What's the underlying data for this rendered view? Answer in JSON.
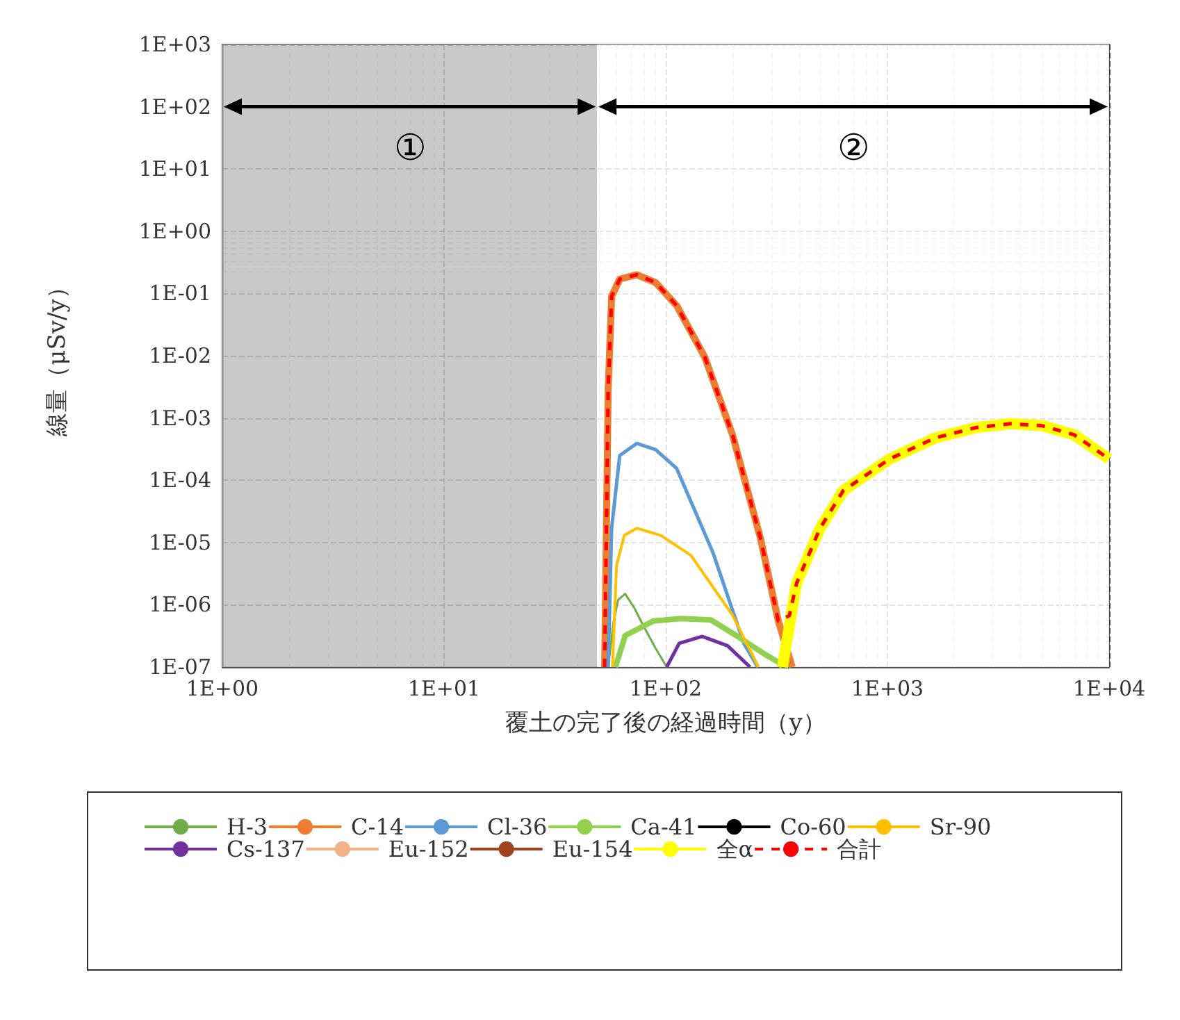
{
  "chart_data": {
    "type": "line",
    "xlabel": "覆土の完了後の経過時間（y）",
    "ylabel": "線量（μSv/y）",
    "log": "xy",
    "grid": true,
    "legend": "bottom",
    "marker": "none",
    "xlim": [
      1,
      10000
    ],
    "xticks": [
      {
        "value": 1,
        "label": "1E+00"
      },
      {
        "value": 10,
        "label": "1E+01"
      },
      {
        "value": 100,
        "label": "1E+02"
      },
      {
        "value": 1000,
        "label": "1E+03"
      },
      {
        "value": 10000,
        "label": "1E+04"
      }
    ],
    "ylim": [
      1e-07,
      1000
    ],
    "yticks": [
      {
        "value": 1e-07,
        "label": "1E-07"
      },
      {
        "value": 1e-06,
        "label": "1E-06"
      },
      {
        "value": 1e-05,
        "label": "1E-05"
      },
      {
        "value": 0.0001,
        "label": "1E-04"
      },
      {
        "value": 0.001,
        "label": "1E-03"
      },
      {
        "value": 0.01,
        "label": "1E-02"
      },
      {
        "value": 0.1,
        "label": "1E-01"
      },
      {
        "value": 1,
        "label": "1E+00"
      },
      {
        "value": 10,
        "label": "1E+01"
      },
      {
        "value": 100,
        "label": "1E+02"
      },
      {
        "value": 1000,
        "label": "1E+03"
      }
    ],
    "bands": [
      {
        "axis": "x",
        "from": 1,
        "to": 49,
        "label": "①",
        "color": "#bfbfbf"
      },
      {
        "axis": "x",
        "from": 49,
        "to": 10000,
        "label": "②",
        "color": "#ffffff"
      }
    ],
    "series": [
      {
        "name": "H-3",
        "color": "#70ad47",
        "x": [
          55,
          58,
          61,
          65.6,
          72,
          79,
          90,
          101
        ],
        "values": [
          1e-07,
          5e-07,
          1.2e-06,
          1.5e-06,
          9e-07,
          4.7e-07,
          2e-07,
          1e-07
        ]
      },
      {
        "name": "C-14",
        "color": "#ed7d31",
        "x": [
          53,
          55,
          57,
          62,
          74,
          90,
          112,
          150,
          200,
          267,
          322,
          372
        ],
        "values": [
          1e-07,
          0.0029,
          0.09,
          0.17,
          0.2,
          0.15,
          0.064,
          0.0095,
          0.00054,
          1.2e-05,
          5.5e-07,
          1e-07
        ]
      },
      {
        "name": "Cl-36",
        "color": "#5b9bd5",
        "x": [
          55,
          57,
          62,
          74,
          90,
          112,
          163,
          225,
          260
        ],
        "values": [
          1e-07,
          1.7e-05,
          0.00025,
          0.00039,
          0.00031,
          0.000155,
          7e-06,
          2.4e-07,
          1e-07
        ]
      },
      {
        "name": "Ca-41",
        "color": "#92d050",
        "x": [
          59.3,
          65.6,
          88,
          117,
          160,
          208,
          280,
          322,
          336
        ],
        "values": [
          1e-07,
          3.2e-07,
          5.5e-07,
          6e-07,
          5.7e-07,
          3.2e-07,
          1.6e-07,
          1.2e-07,
          1e-07
        ]
      },
      {
        "name": "Co-60",
        "color": "#000000"
      },
      {
        "name": "Sr-90",
        "color": "#ffc000",
        "x": [
          57.5,
          60,
          65,
          74,
          95,
          130,
          200,
          262
        ],
        "values": [
          1e-07,
          4.3e-06,
          1.3e-05,
          1.7e-05,
          1.3e-05,
          6.2e-06,
          6.8e-07,
          1e-07
        ]
      },
      {
        "name": "Cs-137",
        "color": "#7030a0",
        "x": [
          101,
          115,
          146,
          190,
          240
        ],
        "values": [
          1e-07,
          2.4e-07,
          3.1e-07,
          2.2e-07,
          1e-07
        ]
      },
      {
        "name": "Eu-152",
        "color": "#f4b183"
      },
      {
        "name": "Eu-154",
        "color": "#a0421e"
      },
      {
        "name": "全α",
        "color": "#ffff00",
        "x": [
          336,
          389,
          497,
          632,
          1023,
          1645,
          2500,
          3590,
          5000,
          6940,
          10000
        ],
        "values": [
          1e-07,
          2.2e-06,
          1.7e-05,
          6.8e-05,
          0.00022,
          0.00048,
          0.0007,
          0.00081,
          0.00075,
          0.00054,
          0.00022
        ]
      },
      {
        "name": "合計",
        "color": "#ff0000",
        "line_style": "dashed",
        "x": [
          53,
          55,
          57,
          62,
          74,
          90,
          112,
          150,
          200,
          267,
          322,
          361,
          389,
          497,
          632,
          1023,
          1645,
          2500,
          3590,
          5000,
          6940,
          10000
        ],
        "values": [
          1e-07,
          0.0029,
          0.09,
          0.17,
          0.2,
          0.15,
          0.064,
          0.0095,
          0.00054,
          1.2e-05,
          5.5e-07,
          6.7e-07,
          2.2e-06,
          1.7e-05,
          6.8e-05,
          0.00022,
          0.00048,
          0.0007,
          0.00081,
          0.00075,
          0.00054,
          0.00022
        ]
      }
    ]
  }
}
